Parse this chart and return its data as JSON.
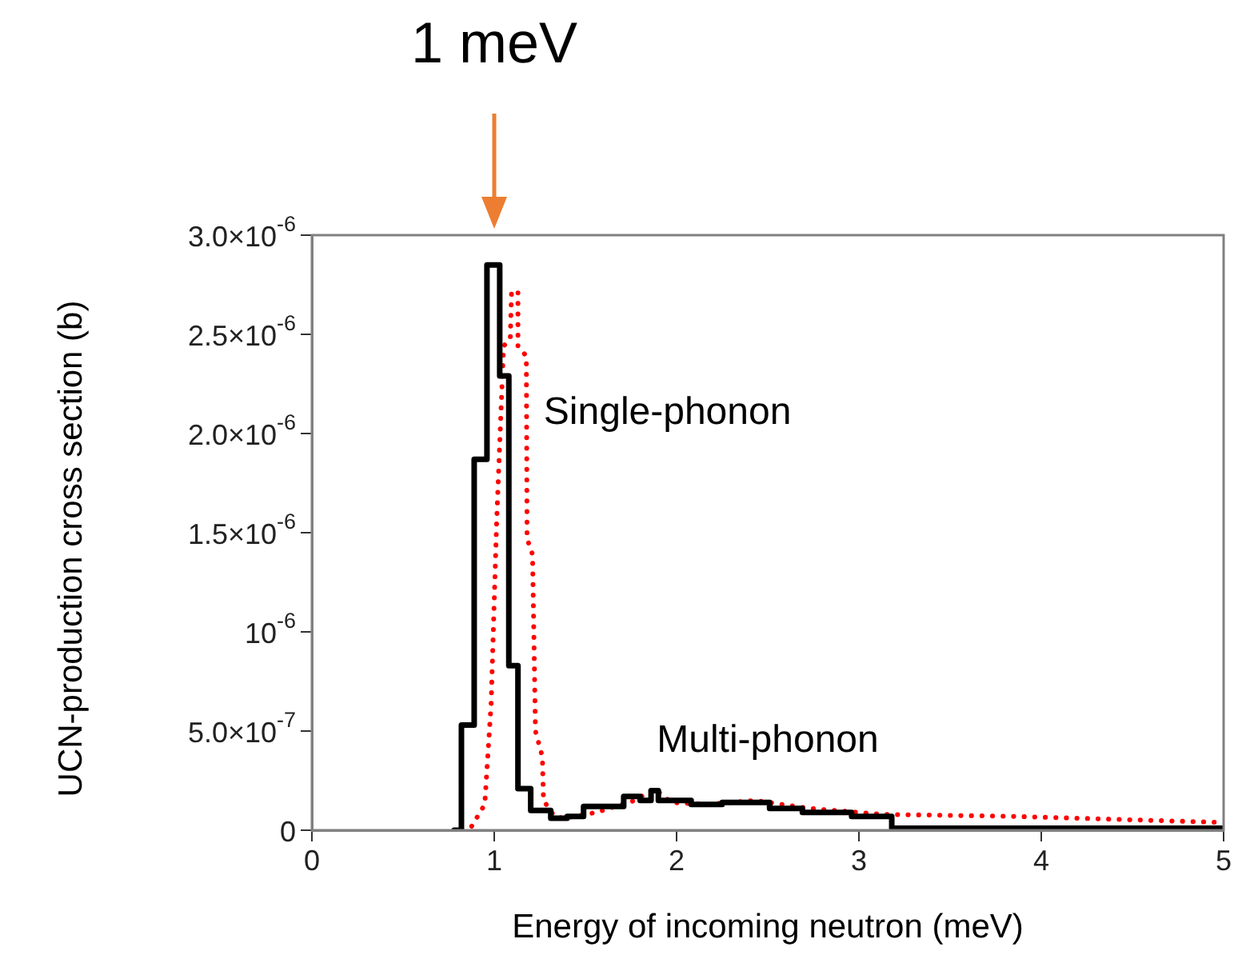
{
  "chart_data": {
    "type": "step",
    "xlabel": "Energy of incoming neutron (meV)",
    "ylabel": "UCN-production cross section (b)",
    "series": [
      {
        "color": "#000000",
        "line_style": "solid",
        "x": [
          0.78,
          0.82,
          0.89,
          0.96,
          1.03,
          1.08,
          1.13,
          1.2,
          1.31,
          1.4,
          1.49,
          1.71,
          1.8,
          1.86,
          1.9,
          2.08,
          2.25,
          2.51,
          2.69,
          2.96,
          3.18,
          5
        ],
        "values": [
          0,
          5.3e-07,
          1.87e-06,
          2.85e-06,
          2.29e-06,
          8.3e-07,
          2.1e-07,
          1e-07,
          6e-08,
          7e-08,
          1.2e-07,
          1.7e-07,
          1.5e-07,
          2e-07,
          1.5e-07,
          1.3e-07,
          1.4e-07,
          1.1e-07,
          9e-08,
          7e-08,
          1e-08,
          1e-08
        ]
      },
      {
        "type": "line",
        "color": "#ff0000",
        "line_style": "dotted",
        "x": [
          0.876,
          0.948,
          0.983,
          1.013,
          1.051,
          1.088,
          1.095,
          1.13,
          1.13,
          1.176,
          1.18,
          1.21,
          1.226,
          1.264,
          1.27,
          1.33,
          1.38,
          1.56,
          1.77,
          1.88,
          1.97,
          2.17,
          2.43,
          2.73,
          3.13,
          3.84,
          4.97
        ],
        "values": [
          2e-08,
          1.3e-07,
          6.4e-07,
          1.55e-06,
          2.44e-06,
          2.48e-06,
          2.72e-06,
          2.71e-06,
          2.44e-06,
          2.39e-06,
          1.47e-06,
          1.39e-06,
          5e-07,
          3.7e-07,
          1.5e-07,
          7e-08,
          6e-08,
          9e-08,
          1.5e-07,
          2.1e-07,
          1.4e-07,
          1.3e-07,
          1.5e-07,
          1.1e-07,
          8e-08,
          7e-08,
          4e-08
        ]
      }
    ],
    "xlim": [
      0,
      5
    ],
    "xticks": [
      0,
      1,
      2,
      3,
      4,
      5
    ],
    "ylim": [
      0,
      3e-06
    ],
    "yticks": [
      0,
      {
        "value": 5e-07,
        "label": "5.0×10$^{-7}$"
      },
      {
        "value": 1e-06,
        "label": "10$^{-6}$"
      },
      {
        "value": 1.5e-06,
        "label": "1.5×10$^{-6}$"
      },
      {
        "value": 2e-06,
        "label": "2.0×10$^{-6}$"
      },
      {
        "value": 2.5e-06,
        "label": "2.5×10$^{-6}$"
      },
      {
        "value": 3e-06,
        "label": "3.0×10$^{-6}$"
      }
    ],
    "grid": false,
    "legend": false,
    "marker": "none",
    "annotations": [
      "1 meV",
      "Single-phonon",
      "Multi-phonon"
    ]
  }
}
